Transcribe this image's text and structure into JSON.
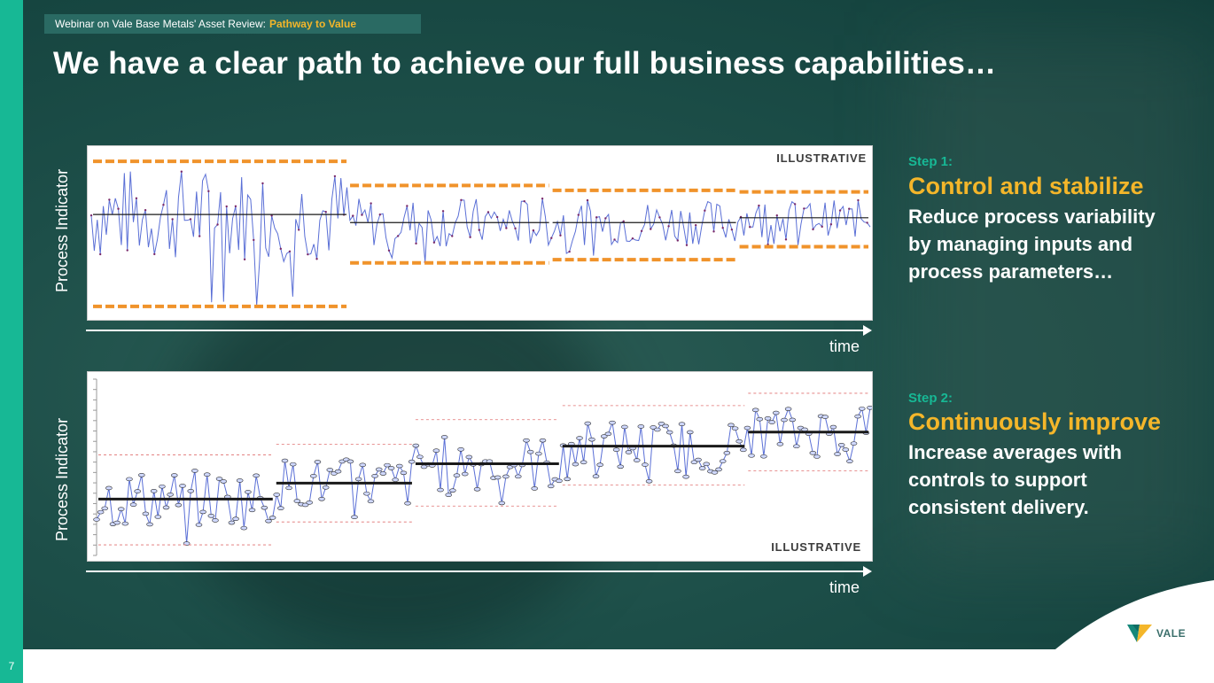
{
  "header": {
    "prefix": "Webinar on Vale Base Metals' Asset Review:",
    "highlight": "Pathway to Value"
  },
  "title": "We have a clear path to achieve our full business capabilities…",
  "page_number": "7",
  "charts": {
    "top": {
      "ylabel": "Process Indicator",
      "badge": "ILLUSTRATIVE",
      "xlabel": "time"
    },
    "bottom": {
      "ylabel": "Process Indicator",
      "badge": "ILLUSTRATIVE",
      "xlabel": "time"
    }
  },
  "steps": [
    {
      "label": "Step 1:",
      "title": "Control and stabilize",
      "description": "Reduce process variability by managing inputs and process parameters…"
    },
    {
      "label": "Step 2:",
      "title": "Continuously improve",
      "description": "Increase averages with controls to support consistent delivery."
    }
  ],
  "logo": {
    "text": "VALE"
  },
  "colors": {
    "accent_teal": "#17b895",
    "accent_yellow": "#f4b62a",
    "control_limit": "#f0932b",
    "series_line": "#5a6fd6",
    "mean_line": "#1a1a1a",
    "bg_dark": "#1d4f49"
  },
  "chart_data": [
    {
      "type": "line",
      "ylabel": "Process Indicator",
      "xlabel": "time",
      "phases": [
        {
          "start": 0,
          "end": 0.33,
          "mean": 0.62,
          "upper": 0.95,
          "lower": 0.05
        },
        {
          "start": 0.33,
          "end": 0.59,
          "mean": 0.57,
          "upper": 0.8,
          "lower": 0.32
        },
        {
          "start": 0.59,
          "end": 0.83,
          "mean": 0.57,
          "upper": 0.77,
          "lower": 0.34
        },
        {
          "start": 0.83,
          "end": 1.0,
          "mean": 0.6,
          "upper": 0.76,
          "lower": 0.42
        }
      ]
    },
    {
      "type": "line",
      "ylabel": "Process Indicator",
      "xlabel": "time",
      "phases": [
        {
          "start": 0,
          "end": 0.23,
          "mean": 0.32,
          "upper": 0.57,
          "lower": 0.06
        },
        {
          "start": 0.23,
          "end": 0.41,
          "mean": 0.41,
          "upper": 0.63,
          "lower": 0.19
        },
        {
          "start": 0.41,
          "end": 0.6,
          "mean": 0.52,
          "upper": 0.77,
          "lower": 0.28
        },
        {
          "start": 0.6,
          "end": 0.84,
          "mean": 0.62,
          "upper": 0.85,
          "lower": 0.4
        },
        {
          "start": 0.84,
          "end": 1.0,
          "mean": 0.7,
          "upper": 0.92,
          "lower": 0.48
        }
      ]
    }
  ]
}
